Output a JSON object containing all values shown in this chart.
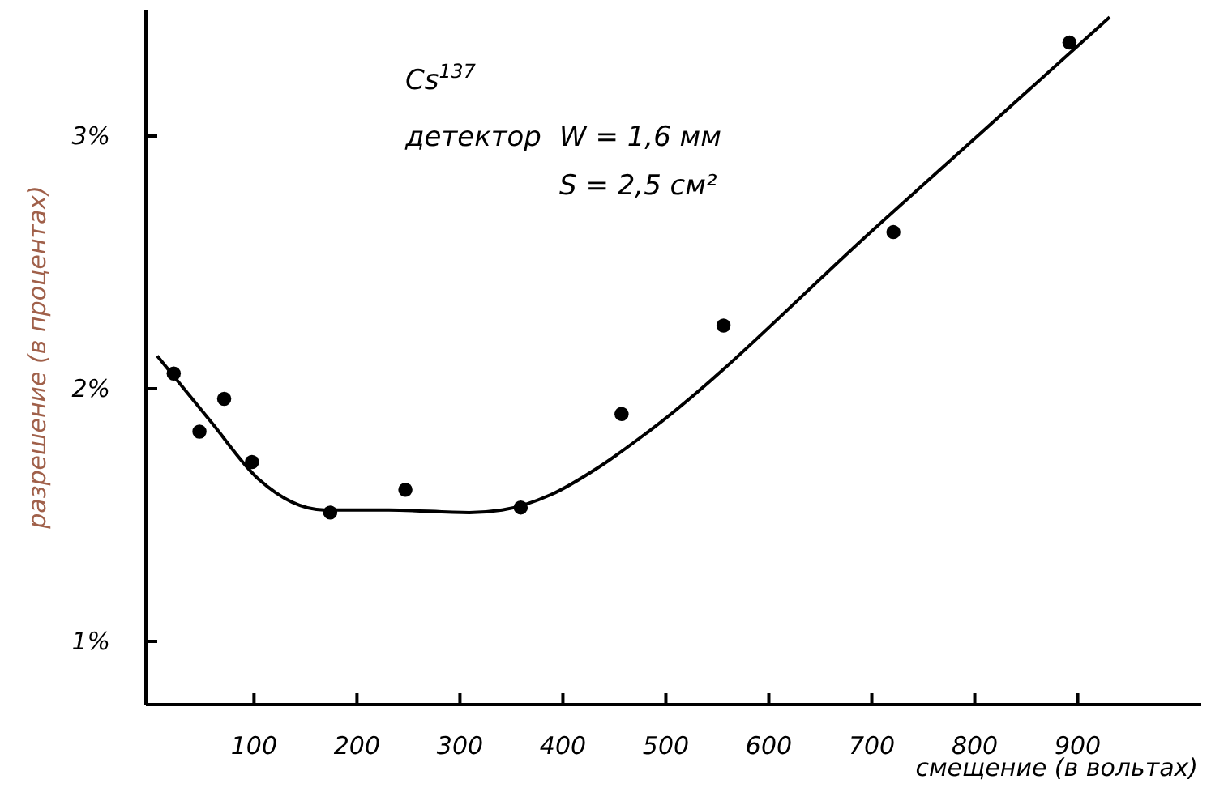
{
  "chart_data": {
    "type": "scatter",
    "xlabel": "смещение (в вольтах)",
    "ylabel": "разрешение (в процентах)",
    "annotations": [
      "Cs$^{137}$",
      "детектор",
      "W = 1,6 мм",
      "S = 2,5 см²"
    ],
    "xlim": [
      -5,
      1020
    ],
    "ylim": [
      0.75,
      3.5
    ],
    "xticks": [
      100,
      200,
      300,
      400,
      500,
      600,
      700,
      800,
      900
    ],
    "yticks": [
      {
        "value": 1,
        "label": "1%"
      },
      {
        "value": 2,
        "label": "2%"
      },
      {
        "value": 3,
        "label": "3%"
      }
    ],
    "grid": false,
    "series": [
      {
        "color": "#000000",
        "marker": "circle",
        "x": [
          22,
          47,
          71,
          98,
          174,
          247,
          359,
          457,
          556,
          721,
          892
        ],
        "values": [
          2.06,
          1.83,
          1.96,
          1.71,
          1.51,
          1.6,
          1.53,
          1.9,
          2.25,
          2.62,
          3.37
        ]
      },
      {
        "type": "line",
        "color": "#000000",
        "marker": "none",
        "line_style": "solid",
        "x": [
          6,
          58,
          105,
          168,
          231,
          309,
          341,
          388,
          435,
          483,
          707,
          931
        ],
        "values": [
          2.13,
          1.87,
          1.64,
          1.52,
          1.52,
          1.51,
          1.52,
          1.58,
          1.69,
          1.83,
          2.65,
          3.47
        ]
      }
    ]
  }
}
